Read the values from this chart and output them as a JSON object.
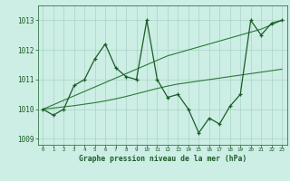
{
  "title": "Graphe pression niveau de la mer (hPa)",
  "bg_color": "#cceee4",
  "grid_color": "#aad4c8",
  "line_color": "#1a5c28",
  "band_color": "#2a7a38",
  "x_values": [
    0,
    1,
    2,
    3,
    4,
    5,
    6,
    7,
    8,
    9,
    10,
    11,
    12,
    13,
    14,
    15,
    16,
    17,
    18,
    19,
    20,
    21,
    22,
    23
  ],
  "y_main": [
    1010.0,
    1009.8,
    1010.0,
    1010.8,
    1011.0,
    1011.7,
    1012.2,
    1011.4,
    1011.1,
    1011.0,
    1013.0,
    1011.0,
    1010.4,
    1010.5,
    1010.0,
    1009.2,
    1009.7,
    1009.5,
    1010.1,
    1010.5,
    1013.0,
    1012.5,
    1012.9,
    1013.0
  ],
  "y_upper": [
    1010.0,
    1010.15,
    1010.3,
    1010.45,
    1010.6,
    1010.75,
    1010.9,
    1011.05,
    1011.2,
    1011.35,
    1011.5,
    1011.65,
    1011.8,
    1011.9,
    1012.0,
    1012.1,
    1012.2,
    1012.3,
    1012.4,
    1012.5,
    1012.6,
    1012.7,
    1012.85,
    1013.0
  ],
  "y_lower": [
    1010.0,
    1010.04,
    1010.08,
    1010.12,
    1010.17,
    1010.22,
    1010.28,
    1010.35,
    1010.43,
    1010.52,
    1010.61,
    1010.7,
    1010.78,
    1010.85,
    1010.9,
    1010.95,
    1011.0,
    1011.05,
    1011.1,
    1011.15,
    1011.2,
    1011.25,
    1011.3,
    1011.35
  ],
  "ylim": [
    1008.8,
    1013.5
  ],
  "xlim": [
    -0.5,
    23.5
  ],
  "yticks": [
    1009,
    1010,
    1011,
    1012,
    1013
  ],
  "xtick_labels": [
    "0",
    "1",
    "2",
    "3",
    "4",
    "5",
    "6",
    "7",
    "8",
    "9",
    "10",
    "11",
    "12",
    "13",
    "14",
    "15",
    "16",
    "17",
    "18",
    "19",
    "20",
    "21",
    "22",
    "23"
  ]
}
